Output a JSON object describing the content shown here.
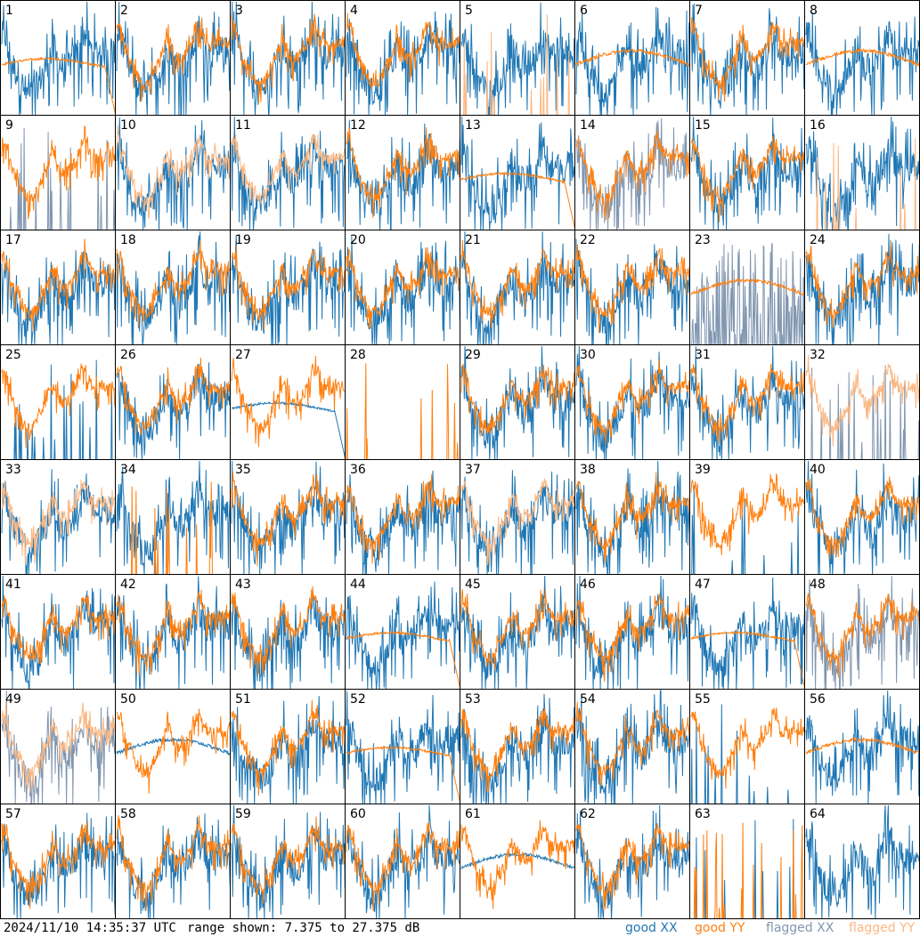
{
  "footer": {
    "timestamp": "2024/11/10 14:35:37 UTC",
    "range": "range shown: 7.375 to 27.375 dB"
  },
  "legend": [
    {
      "key": "good_xx",
      "label": "good XX",
      "color": "#1f77b4"
    },
    {
      "key": "good_yy",
      "label": "good YY",
      "color": "#ff7f0e"
    },
    {
      "key": "flagged_xx",
      "label": "flagged XX",
      "color": "#8096b0"
    },
    {
      "key": "flagged_yy",
      "label": "flagged YY",
      "color": "#fbb782"
    }
  ],
  "chart_data": {
    "type": "line",
    "title": "",
    "grid_layout": {
      "rows": 8,
      "cols": 8
    },
    "y_range_db": [
      7.375,
      27.375
    ],
    "panels": [
      {
        "n": "1",
        "xx": "good",
        "yy": "good",
        "yy_style": "smooth_drop"
      },
      {
        "n": "2",
        "xx": "good",
        "yy": "good",
        "yy_style": "normal"
      },
      {
        "n": "3",
        "xx": "good",
        "yy": "good",
        "yy_style": "normal"
      },
      {
        "n": "4",
        "xx": "good",
        "yy": "good",
        "yy_style": "normal"
      },
      {
        "n": "5",
        "xx": "good",
        "yy": "flagged",
        "yy_style": "spikes"
      },
      {
        "n": "6",
        "xx": "good",
        "yy": "good",
        "yy_style": "smooth"
      },
      {
        "n": "7",
        "xx": "good",
        "yy": "good",
        "yy_style": "normal"
      },
      {
        "n": "8",
        "xx": "good",
        "yy": "good",
        "yy_style": "smooth"
      },
      {
        "n": "9",
        "xx": "flagged",
        "yy": "good",
        "yy_style": "normal",
        "xx_style": "spikes"
      },
      {
        "n": "10",
        "xx": "good",
        "yy": "flagged",
        "yy_style": "normal"
      },
      {
        "n": "11",
        "xx": "good",
        "yy": "flagged",
        "yy_style": "normal"
      },
      {
        "n": "12",
        "xx": "good",
        "yy": "good",
        "yy_style": "normal"
      },
      {
        "n": "13",
        "xx": "good",
        "yy": "good",
        "yy_style": "smooth_drop"
      },
      {
        "n": "14",
        "xx": "flagged",
        "yy": "good",
        "yy_style": "normal"
      },
      {
        "n": "15",
        "xx": "good",
        "yy": "good",
        "yy_style": "normal"
      },
      {
        "n": "16",
        "xx": "good",
        "yy": "flagged",
        "yy_style": "spikes"
      },
      {
        "n": "17",
        "xx": "good",
        "yy": "good",
        "yy_style": "normal"
      },
      {
        "n": "18",
        "xx": "good",
        "yy": "good",
        "yy_style": "normal"
      },
      {
        "n": "19",
        "xx": "good",
        "yy": "good",
        "yy_style": "normal"
      },
      {
        "n": "20",
        "xx": "good",
        "yy": "good",
        "yy_style": "normal"
      },
      {
        "n": "21",
        "xx": "good",
        "yy": "good",
        "yy_style": "normal"
      },
      {
        "n": "22",
        "xx": "good",
        "yy": "good",
        "yy_style": "normal"
      },
      {
        "n": "23",
        "xx": "flagged",
        "yy": "good",
        "yy_style": "smooth",
        "xx_style": "noise"
      },
      {
        "n": "24",
        "xx": "good",
        "yy": "good",
        "yy_style": "normal"
      },
      {
        "n": "25",
        "xx": "good",
        "yy": "good",
        "yy_style": "normal",
        "xx_style": "spikes"
      },
      {
        "n": "26",
        "xx": "good",
        "yy": "good",
        "yy_style": "normal"
      },
      {
        "n": "27",
        "xx": "good",
        "yy": "good",
        "yy_style": "normal",
        "xx_style": "smooth_drop"
      },
      {
        "n": "28",
        "xx": "none",
        "yy": "good",
        "yy_style": "spikes"
      },
      {
        "n": "29",
        "xx": "good",
        "yy": "good",
        "yy_style": "normal"
      },
      {
        "n": "30",
        "xx": "good",
        "yy": "good",
        "yy_style": "normal"
      },
      {
        "n": "31",
        "xx": "good",
        "yy": "good",
        "yy_style": "normal"
      },
      {
        "n": "32",
        "xx": "flagged",
        "yy": "flagged",
        "yy_style": "normal",
        "xx_style": "spikes"
      },
      {
        "n": "33",
        "xx": "good",
        "yy": "flagged",
        "yy_style": "normal"
      },
      {
        "n": "34",
        "xx": "good",
        "yy": "good",
        "yy_style": "spikes"
      },
      {
        "n": "35",
        "xx": "good",
        "yy": "good",
        "yy_style": "normal"
      },
      {
        "n": "36",
        "xx": "good",
        "yy": "good",
        "yy_style": "normal"
      },
      {
        "n": "37",
        "xx": "good",
        "yy": "flagged",
        "yy_style": "normal"
      },
      {
        "n": "38",
        "xx": "good",
        "yy": "good",
        "yy_style": "normal"
      },
      {
        "n": "39",
        "xx": "good",
        "yy": "good",
        "yy_style": "normal",
        "xx_style": "spikes"
      },
      {
        "n": "40",
        "xx": "good",
        "yy": "good",
        "yy_style": "normal"
      },
      {
        "n": "41",
        "xx": "good",
        "yy": "good",
        "yy_style": "normal"
      },
      {
        "n": "42",
        "xx": "good",
        "yy": "good",
        "yy_style": "normal"
      },
      {
        "n": "43",
        "xx": "good",
        "yy": "good",
        "yy_style": "normal"
      },
      {
        "n": "44",
        "xx": "good",
        "yy": "good",
        "yy_style": "smooth_drop"
      },
      {
        "n": "45",
        "xx": "good",
        "yy": "good",
        "yy_style": "normal"
      },
      {
        "n": "46",
        "xx": "good",
        "yy": "good",
        "yy_style": "normal"
      },
      {
        "n": "47",
        "xx": "good",
        "yy": "good",
        "yy_style": "smooth_drop"
      },
      {
        "n": "48",
        "xx": "flagged",
        "yy": "good",
        "yy_style": "normal"
      },
      {
        "n": "49",
        "xx": "flagged",
        "yy": "flagged",
        "yy_style": "normal"
      },
      {
        "n": "50",
        "xx": "good",
        "yy": "good",
        "yy_style": "normal",
        "xx_style": "smooth"
      },
      {
        "n": "51",
        "xx": "good",
        "yy": "good",
        "yy_style": "normal"
      },
      {
        "n": "52",
        "xx": "good",
        "yy": "good",
        "yy_style": "smooth_drop"
      },
      {
        "n": "53",
        "xx": "good",
        "yy": "good",
        "yy_style": "normal"
      },
      {
        "n": "54",
        "xx": "good",
        "yy": "good",
        "yy_style": "normal"
      },
      {
        "n": "55",
        "xx": "good",
        "yy": "good",
        "yy_style": "normal",
        "xx_style": "spikes"
      },
      {
        "n": "56",
        "xx": "good",
        "yy": "good",
        "yy_style": "smooth"
      },
      {
        "n": "57",
        "xx": "good",
        "yy": "good",
        "yy_style": "normal"
      },
      {
        "n": "58",
        "xx": "good",
        "yy": "good",
        "yy_style": "normal"
      },
      {
        "n": "59",
        "xx": "good",
        "yy": "good",
        "yy_style": "normal"
      },
      {
        "n": "60",
        "xx": "good",
        "yy": "good",
        "yy_style": "normal"
      },
      {
        "n": "61",
        "xx": "good",
        "yy": "good",
        "yy_style": "normal",
        "xx_style": "smooth"
      },
      {
        "n": "62",
        "xx": "good",
        "yy": "good",
        "yy_style": "normal"
      },
      {
        "n": "63",
        "xx": "good",
        "yy": "good",
        "yy_style": "spikes",
        "xx_style": "spikes"
      },
      {
        "n": "64",
        "xx": "good",
        "yy": "none",
        "yy_style": "none"
      }
    ]
  }
}
